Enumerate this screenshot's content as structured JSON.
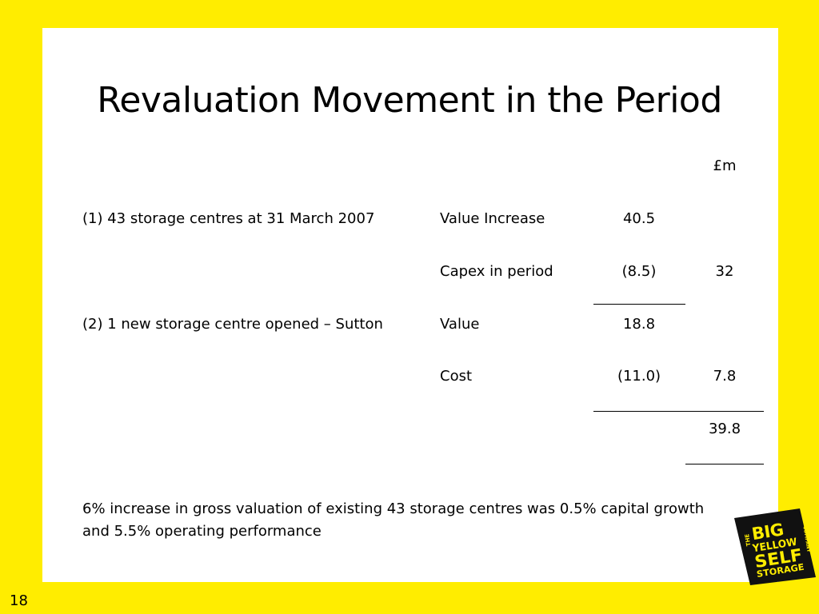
{
  "slide": {
    "title": "Revaluation Movement in the Period",
    "unit_header": "£m",
    "rows": [
      {
        "description": "(1) 43 storage centres at 31 March 2007",
        "label": "Value Increase",
        "amount": "40.5",
        "subtotal": ""
      },
      {
        "description": "",
        "label": "Capex in period",
        "amount": "(8.5)",
        "subtotal": "32"
      },
      {
        "description": "(2) 1 new storage centre opened – Sutton",
        "label": "Value",
        "amount": "18.8",
        "subtotal": ""
      },
      {
        "description": "",
        "label": "Cost",
        "amount": "(11.0)",
        "subtotal": "7.8"
      }
    ],
    "total": "39.8",
    "note": "6% increase in gross valuation of existing 43 storage centres was 0.5% capital growth and 5.5% operating performance",
    "page_number": "18"
  },
  "logo": {
    "word_the": "THE",
    "word_big": "BIG",
    "word_yellow": "YELLOW",
    "word_self": "SELF",
    "word_storage": "STORAGE",
    "word_company": "COMPANY",
    "colors": {
      "background": "#000000",
      "text": "#FFED00"
    }
  },
  "colors": {
    "frame": "#FFED00",
    "panel": "#FFFFFF",
    "text": "#000000"
  }
}
